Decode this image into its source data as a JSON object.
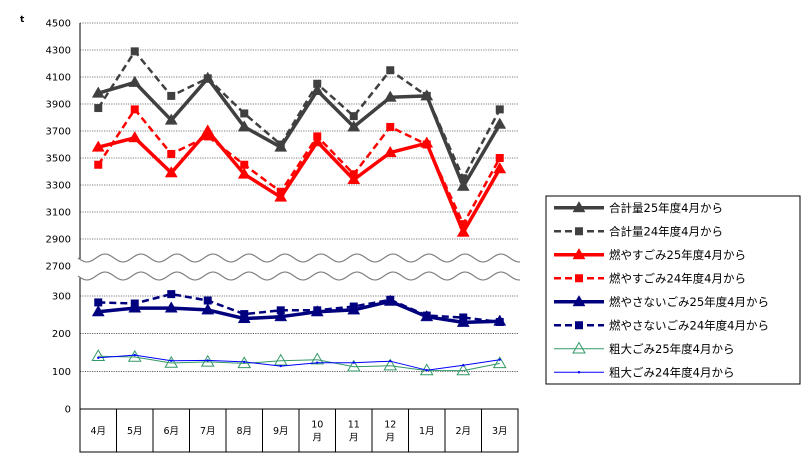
{
  "chart_data": {
    "type": "line",
    "unit_label": "t",
    "categories": [
      "4月",
      "5月",
      "6月",
      "7月",
      "8月",
      "9月",
      "10月",
      "11月",
      "12月",
      "1月",
      "2月",
      "3月"
    ],
    "category_display": [
      [
        "4月"
      ],
      [
        "5月"
      ],
      [
        "6月"
      ],
      [
        "7月"
      ],
      [
        "8月"
      ],
      [
        "9月"
      ],
      [
        "10",
        "月"
      ],
      [
        "11",
        "月"
      ],
      [
        "12",
        "月"
      ],
      [
        "1月"
      ],
      [
        "2月"
      ],
      [
        "3月"
      ]
    ],
    "axis_upper": {
      "ylim": [
        2700,
        4500
      ],
      "ticks": [
        "4500",
        "4300",
        "4100",
        "3900",
        "3700",
        "3500",
        "3300",
        "3100",
        "2900",
        "2700"
      ],
      "tick_values": [
        4500,
        4300,
        4100,
        3900,
        3700,
        3500,
        3300,
        3100,
        2900,
        2700
      ]
    },
    "axis_lower": {
      "ylim": [
        0,
        300
      ],
      "ticks": [
        "300",
        "200",
        "100",
        "0"
      ],
      "tick_values": [
        300,
        200,
        100,
        0
      ]
    },
    "grid": true,
    "legend_position": "right",
    "series": [
      {
        "name": "合計量25年度4月から",
        "axis": "upper",
        "color": "#404040",
        "dash": "solid",
        "width": 3.5,
        "marker": "triangle",
        "values": [
          3980,
          4060,
          3780,
          4090,
          3730,
          3580,
          4000,
          3730,
          3950,
          3960,
          3290,
          3750
        ]
      },
      {
        "name": "合計量24年度4月から",
        "axis": "upper",
        "color": "#404040",
        "dash": "dash",
        "width": 2.5,
        "marker": "square",
        "values": [
          3870,
          4290,
          3960,
          4090,
          3830,
          3600,
          4050,
          3810,
          4150,
          3960,
          3350,
          3860
        ]
      },
      {
        "name": "燃やすごみ25年度4月から",
        "axis": "upper",
        "color": "#ff0000",
        "dash": "solid",
        "width": 3.5,
        "marker": "triangle",
        "values": [
          3580,
          3650,
          3390,
          3700,
          3380,
          3210,
          3620,
          3340,
          3540,
          3610,
          2950,
          3420
        ]
      },
      {
        "name": "燃やすごみ24年度4月から",
        "axis": "upper",
        "color": "#ff0000",
        "dash": "dash",
        "width": 2.5,
        "marker": "square",
        "values": [
          3450,
          3860,
          3530,
          3660,
          3450,
          3250,
          3660,
          3380,
          3730,
          3600,
          3010,
          3500
        ]
      },
      {
        "name": "燃やさないごみ25年度4月から",
        "axis": "lower",
        "color": "#00007f",
        "dash": "solid",
        "width": 3.5,
        "marker": "triangle",
        "values": [
          258,
          268,
          268,
          263,
          240,
          245,
          258,
          263,
          286,
          245,
          230,
          233
        ]
      },
      {
        "name": "燃やさないごみ24年度4月から",
        "axis": "lower",
        "color": "#00007f",
        "dash": "dash",
        "width": 2.5,
        "marker": "square",
        "values": [
          283,
          280,
          305,
          288,
          252,
          262,
          262,
          272,
          290,
          248,
          243,
          231
        ]
      },
      {
        "name": "粗大ごみ25年度4月から",
        "axis": "lower",
        "color": "#339966",
        "dash": "solid",
        "width": 1,
        "marker": "open-triangle",
        "values": [
          140,
          138,
          122,
          125,
          121,
          128,
          131,
          112,
          115,
          102,
          102,
          121
        ]
      },
      {
        "name": "粗大ごみ24年度4月から",
        "axis": "lower",
        "color": "#0000ff",
        "dash": "solid",
        "width": 1,
        "marker": "none",
        "values": [
          136,
          143,
          128,
          129,
          125,
          114,
          123,
          123,
          127,
          103,
          116,
          131
        ]
      }
    ]
  }
}
